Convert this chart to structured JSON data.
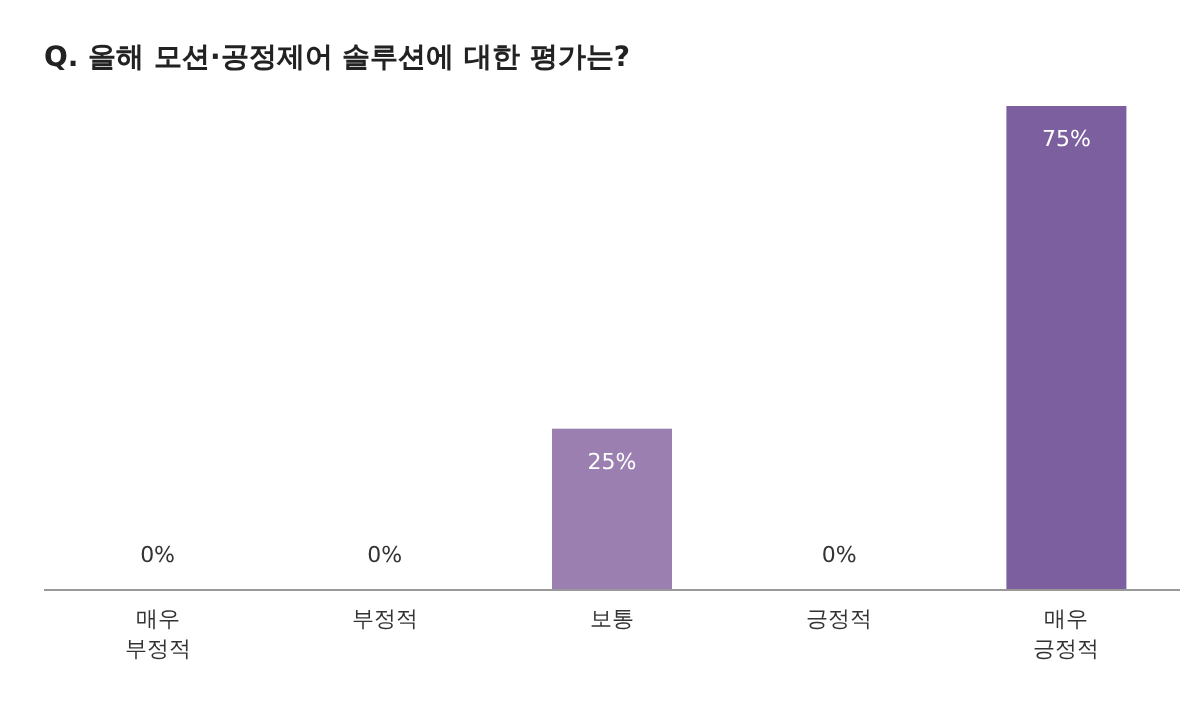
{
  "chart_data": {
    "type": "bar",
    "title": "Q. 올해 모션·공정제어 솔루션에 대한 평가는?",
    "categories": [
      "매우 부정적",
      "부정적",
      "보통",
      "긍정적",
      "매우 긍정적"
    ],
    "values": [
      0,
      0,
      25,
      0,
      75
    ],
    "colors": [
      "#9a7fb0",
      "#9a7fb0",
      "#9a7fb0",
      "#9a7fb0",
      "#7b5f9e"
    ],
    "value_labels": [
      "0%",
      "0%",
      "25%",
      "0%",
      "75%"
    ],
    "ylim": [
      0,
      75
    ],
    "tick_labels": "x"
  }
}
